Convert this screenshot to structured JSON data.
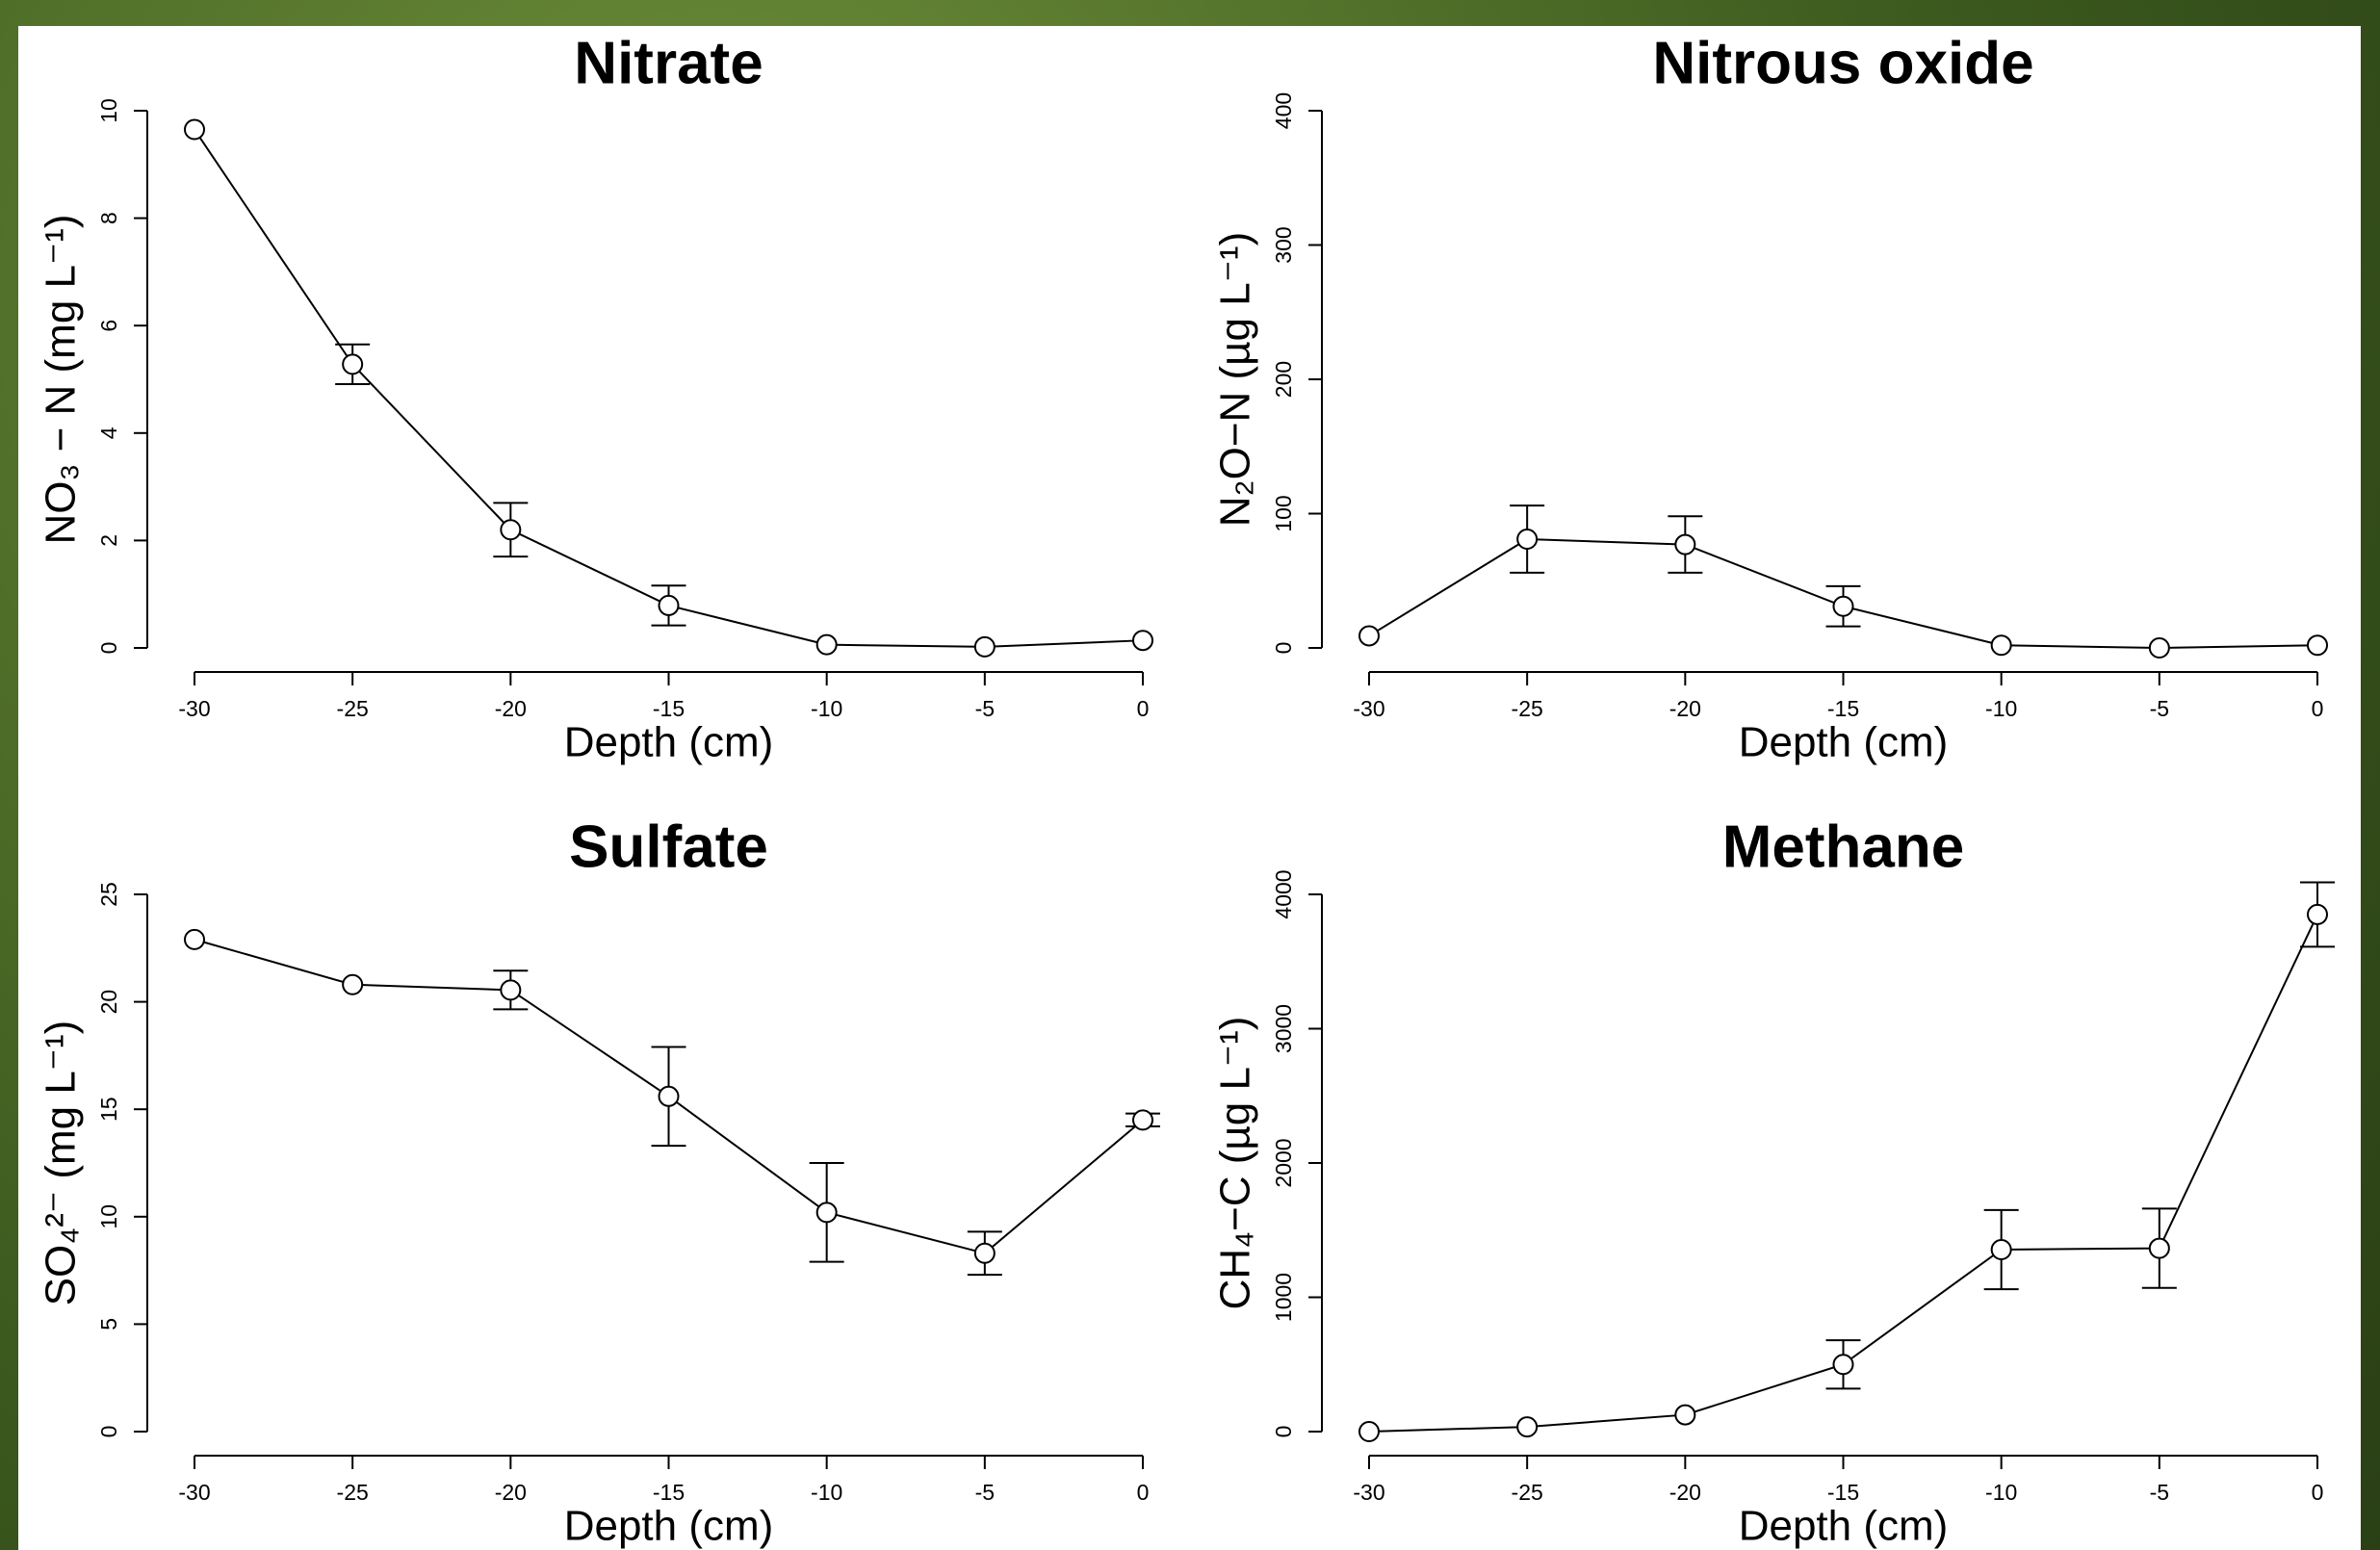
{
  "chart_data": [
    {
      "type": "line",
      "title": "Nitrate",
      "x_label": "Depth (cm)",
      "y_label": "NO₃ − N (mg L⁻¹)",
      "x": [
        -30,
        -25,
        -20,
        -15,
        -10,
        -5,
        0
      ],
      "values": [
        9.65,
        5.28,
        2.2,
        0.79,
        0.06,
        0.02,
        0.14
      ],
      "errors": [
        null,
        0.37,
        0.5,
        0.37,
        null,
        null,
        null
      ],
      "xlim": [
        -30,
        0
      ],
      "ylim": [
        0,
        10
      ],
      "xticks": [
        -30,
        -25,
        -20,
        -15,
        -10,
        -5,
        0
      ],
      "yticks": [
        0,
        2,
        4,
        6,
        8,
        10
      ],
      "color": "#000000"
    },
    {
      "type": "line",
      "title": "Nitrous oxide",
      "x_label": "Depth (cm)",
      "y_label": "N₂O−N (µg L⁻¹)",
      "x": [
        -30,
        -25,
        -20,
        -15,
        -10,
        -5,
        0
      ],
      "values": [
        9,
        81,
        77,
        31,
        2,
        0,
        2
      ],
      "errors": [
        null,
        25,
        21,
        15,
        null,
        null,
        null
      ],
      "xlim": [
        -30,
        0
      ],
      "ylim": [
        0,
        400
      ],
      "xticks": [
        -30,
        -25,
        -20,
        -15,
        -10,
        -5,
        0
      ],
      "yticks": [
        0,
        100,
        200,
        300,
        400
      ],
      "color": "#000000"
    },
    {
      "type": "line",
      "title": "Sulfate",
      "x_label": "Depth (cm)",
      "y_label": "SO₄²⁻ (mg L⁻¹)",
      "x": [
        -30,
        -25,
        -20,
        -15,
        -10,
        -5,
        0
      ],
      "values": [
        22.9,
        20.8,
        20.55,
        15.6,
        10.2,
        8.3,
        14.5
      ],
      "errors": [
        null,
        null,
        0.9,
        2.3,
        2.3,
        1.0,
        0.3
      ],
      "xlim": [
        -30,
        0
      ],
      "ylim": [
        0,
        25
      ],
      "xticks": [
        -30,
        -25,
        -20,
        -15,
        -10,
        -5,
        0
      ],
      "yticks": [
        0,
        5,
        10,
        15,
        20,
        25
      ],
      "color": "#000000"
    },
    {
      "type": "line",
      "title": "Methane",
      "x_label": "Depth (cm)",
      "y_label": "CH₄−C (µg L⁻¹)",
      "x": [
        -30,
        -25,
        -20,
        -15,
        -10,
        -5,
        0
      ],
      "values": [
        0,
        35,
        125,
        500,
        1355,
        1365,
        3850
      ],
      "errors": [
        null,
        null,
        null,
        180,
        295,
        295,
        240
      ],
      "xlim": [
        -30,
        0
      ],
      "ylim": [
        0,
        4000
      ],
      "xticks": [
        -30,
        -25,
        -20,
        -15,
        -10,
        -5,
        0
      ],
      "yticks": [
        0,
        1000,
        2000,
        3000,
        4000
      ],
      "color": "#000000"
    }
  ]
}
